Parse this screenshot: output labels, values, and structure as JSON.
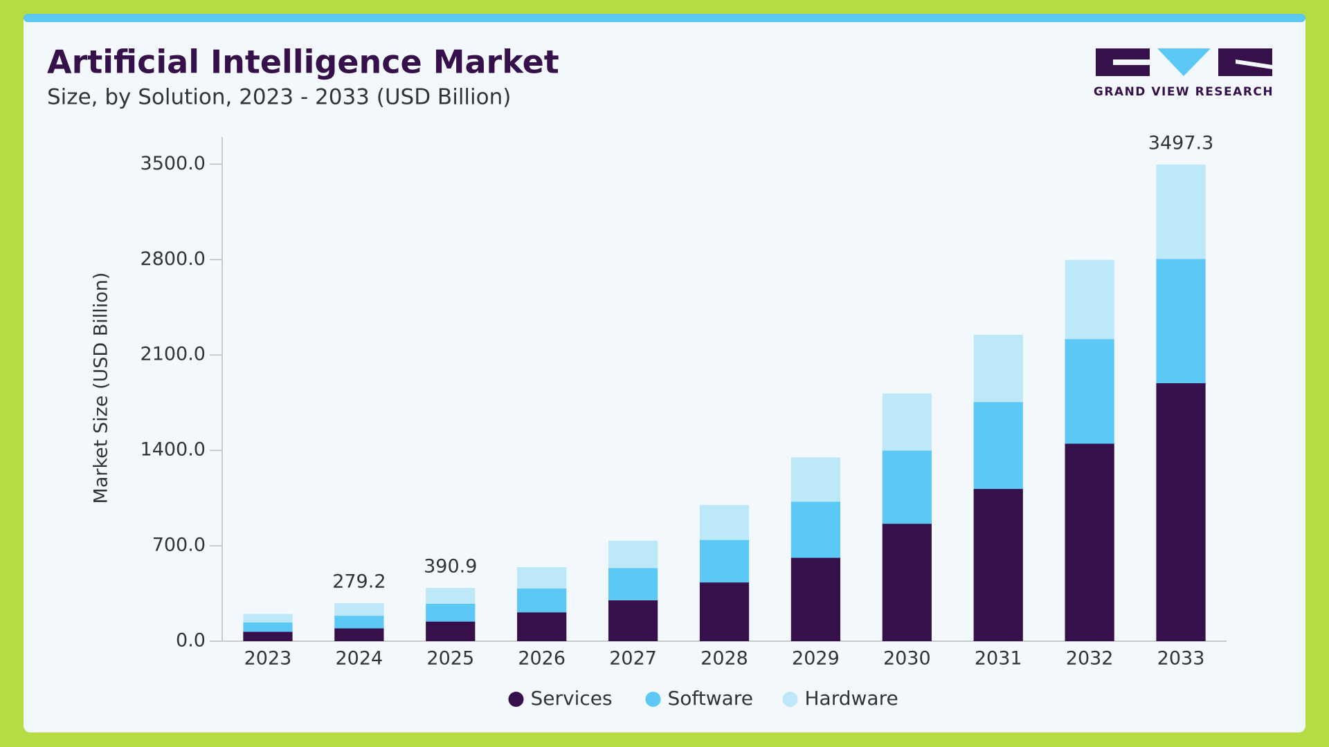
{
  "chart_data": {
    "type": "stacked-bar",
    "title": "Artificial Intelligence Market",
    "subtitle": "Size, by Solution, 2023 - 2033 (USD Billion)",
    "y_label": "Market Size (USD Billion)",
    "categories": [
      "2023",
      "2024",
      "2025",
      "2026",
      "2027",
      "2028",
      "2029",
      "2030",
      "2031",
      "2032",
      "2033"
    ],
    "series": [
      {
        "name": "Services",
        "color": "#36104a",
        "values": [
          69,
          94,
          144,
          212,
          300,
          431,
          612,
          862,
          1118,
          1449,
          1893
        ]
      },
      {
        "name": "Software",
        "color": "#5bc8f5",
        "values": [
          69,
          93,
          131,
          175,
          237,
          312,
          412,
          537,
          637,
          768,
          911
        ]
      },
      {
        "name": "Hardware",
        "color": "#bde8f8",
        "values": [
          62,
          92.2,
          115.9,
          156,
          200,
          256,
          325,
          419,
          494,
          581,
          693.3
        ]
      }
    ],
    "totals": [
      null,
      279.2,
      390.9,
      null,
      null,
      null,
      null,
      null,
      null,
      null,
      3497.3
    ],
    "ylim": [
      0,
      3700
    ],
    "yticks": [
      {
        "value": 0,
        "label": "0.0"
      },
      {
        "value": 700,
        "label": "700.0"
      },
      {
        "value": 1400,
        "label": "1400.0"
      },
      {
        "value": 2100,
        "label": "2100.0"
      },
      {
        "value": 2800,
        "label": "2800.0"
      },
      {
        "value": 3500,
        "label": "3500.0"
      }
    ],
    "grid": false,
    "legend": "bottom"
  },
  "logo": {
    "text": "GRAND VIEW RESEARCH"
  }
}
